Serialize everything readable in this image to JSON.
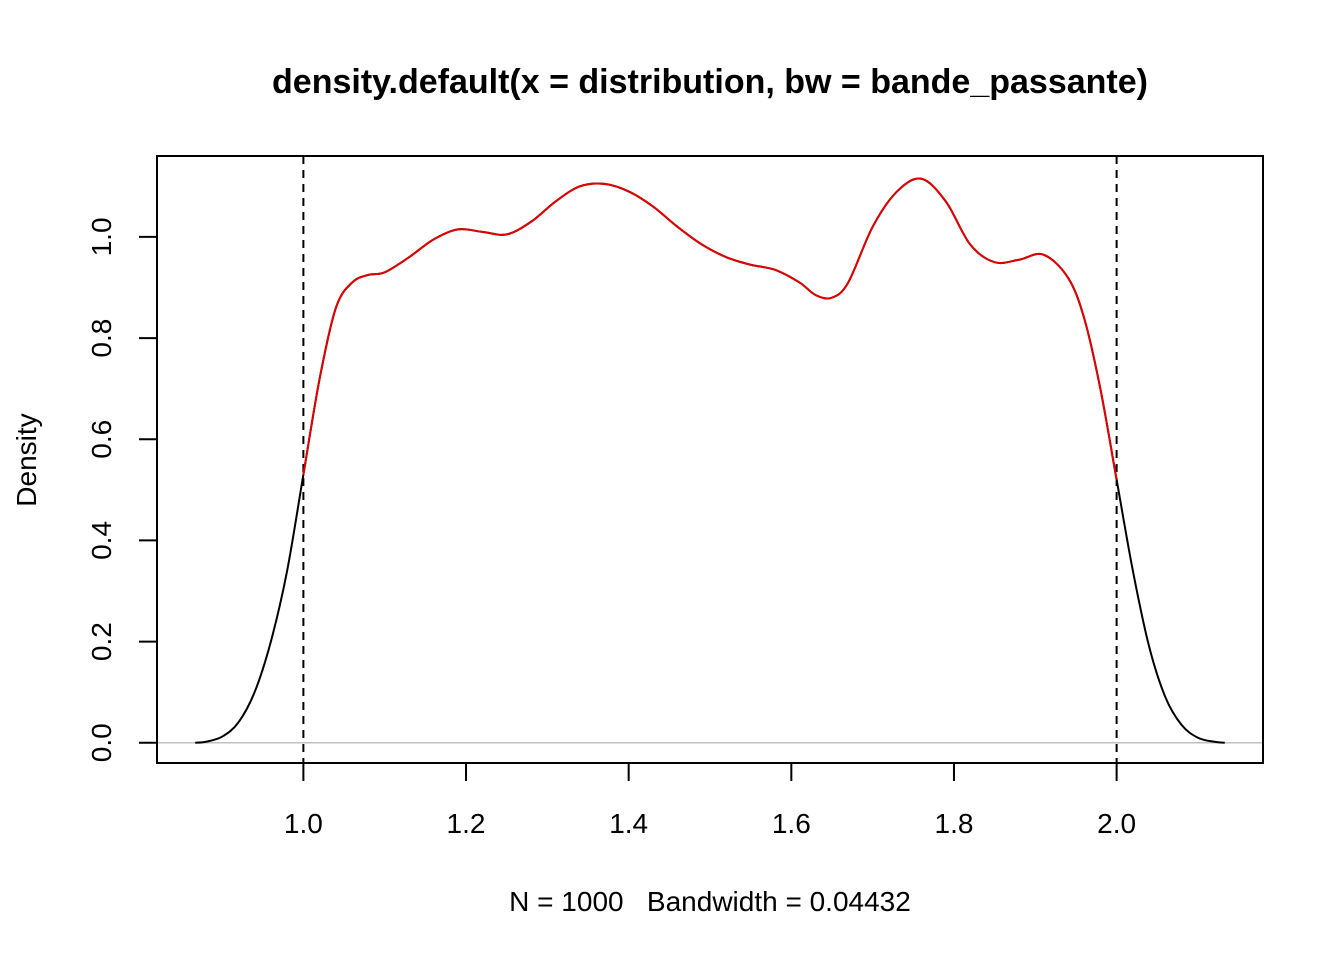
{
  "chart_data": {
    "type": "line",
    "title": "density.default(x = distribution, bw = bande_passante)",
    "xlabel": "N = 1000   Bandwidth = 0.04432",
    "ylabel": "Density",
    "xlim": [
      0.82,
      2.18
    ],
    "ylim": [
      -0.04,
      1.16
    ],
    "x_ticks": [
      1.0,
      1.2,
      1.4,
      1.6,
      1.8,
      2.0
    ],
    "x_tick_labels": [
      "1.0",
      "1.2",
      "1.4",
      "1.6",
      "1.8",
      "2.0"
    ],
    "y_ticks": [
      0.0,
      0.2,
      0.4,
      0.6,
      0.8,
      1.0
    ],
    "y_tick_labels": [
      "0.0",
      "0.2",
      "0.4",
      "0.6",
      "0.8",
      "1.0"
    ],
    "grid": false,
    "baseline": {
      "y": 0,
      "color": "#c0c0c0"
    },
    "vlines": [
      {
        "x": 1.0,
        "style": "dashed",
        "color": "#000000"
      },
      {
        "x": 2.0,
        "style": "dashed",
        "color": "#000000"
      }
    ],
    "series": [
      {
        "color": "#000000",
        "x": [
          0.867,
          0.88,
          0.9,
          0.92,
          0.94,
          0.96,
          0.98,
          1.0,
          1.02,
          1.04,
          1.06,
          1.08,
          1.1,
          1.13,
          1.16,
          1.19,
          1.22,
          1.25,
          1.28,
          1.31,
          1.34,
          1.37,
          1.4,
          1.43,
          1.46,
          1.49,
          1.52,
          1.55,
          1.58,
          1.61,
          1.63,
          1.65,
          1.67,
          1.7,
          1.73,
          1.76,
          1.79,
          1.82,
          1.85,
          1.88,
          1.91,
          1.94,
          1.96,
          1.98,
          2.0,
          2.02,
          2.04,
          2.06,
          2.08,
          2.1,
          2.12,
          2.133
        ],
        "values": [
          0.0,
          0.002,
          0.012,
          0.04,
          0.1,
          0.2,
          0.34,
          0.53,
          0.72,
          0.86,
          0.91,
          0.925,
          0.93,
          0.96,
          0.995,
          1.015,
          1.01,
          1.005,
          1.03,
          1.07,
          1.1,
          1.105,
          1.09,
          1.06,
          1.02,
          0.985,
          0.96,
          0.945,
          0.935,
          0.91,
          0.885,
          0.88,
          0.91,
          1.02,
          1.09,
          1.115,
          1.07,
          0.985,
          0.95,
          0.955,
          0.965,
          0.92,
          0.84,
          0.7,
          0.52,
          0.34,
          0.19,
          0.09,
          0.035,
          0.01,
          0.002,
          0.0
        ]
      },
      {
        "color": "#e00000",
        "x": [
          1.0,
          1.02,
          1.04,
          1.06,
          1.08,
          1.1,
          1.13,
          1.16,
          1.19,
          1.22,
          1.25,
          1.28,
          1.31,
          1.34,
          1.37,
          1.4,
          1.43,
          1.46,
          1.49,
          1.52,
          1.55,
          1.58,
          1.61,
          1.63,
          1.65,
          1.67,
          1.7,
          1.73,
          1.76,
          1.79,
          1.82,
          1.85,
          1.88,
          1.91,
          1.94,
          1.96,
          1.98,
          2.0
        ],
        "values": [
          0.53,
          0.72,
          0.86,
          0.91,
          0.925,
          0.93,
          0.96,
          0.995,
          1.015,
          1.01,
          1.005,
          1.03,
          1.07,
          1.1,
          1.105,
          1.09,
          1.06,
          1.02,
          0.985,
          0.96,
          0.945,
          0.935,
          0.91,
          0.885,
          0.88,
          0.91,
          1.02,
          1.09,
          1.115,
          1.07,
          0.985,
          0.95,
          0.955,
          0.965,
          0.92,
          0.84,
          0.7,
          0.52
        ]
      }
    ]
  }
}
